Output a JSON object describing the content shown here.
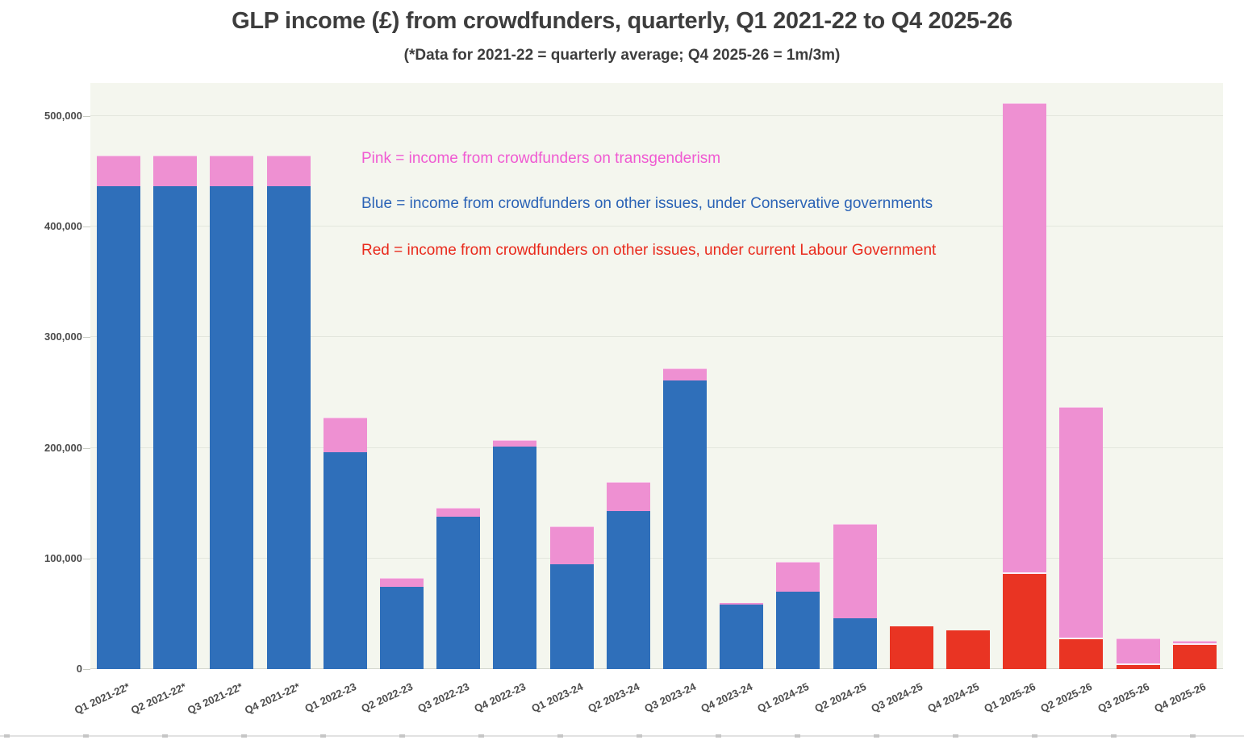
{
  "header": {
    "title": "GLP income (£) from crowdfunders, quarterly, Q1 2021-22 to Q4 2025-26",
    "subtitle": "(*Data for 2021-22 = quarterly average; Q4 2025-26 = 1m/3m)"
  },
  "legend": {
    "items": [
      {
        "label": "Pink = income from crowdfunders on transgenderism",
        "color": "#f05ad2"
      },
      {
        "label": "Blue = income from crowdfunders on other issues, under Conservative governments",
        "color": "#2b63b6"
      },
      {
        "label": "Red = income from crowdfunders on other issues, under current Labour Government",
        "color": "#e92a1c"
      }
    ]
  },
  "colors": {
    "pink_bar": "#ee90d2",
    "blue_bar": "#2f6fba",
    "red_bar": "#e93423",
    "plot_background": "#f4f6ee",
    "gridline": "#e3e6dd",
    "axis_text": "#4c4c4c",
    "title_text": "#3d3d3d"
  },
  "chart_data": {
    "type": "bar",
    "stacked": true,
    "title": "GLP income (£) from crowdfunders, quarterly, Q1 2021-22 to Q4 2025-26",
    "subtitle": "(*Data for 2021-22 = quarterly average; Q4 2025-26 = 1m/3m)",
    "xlabel": "",
    "ylabel": "",
    "grid": true,
    "ylim": [
      0,
      530000
    ],
    "yticks": [
      0,
      100000,
      200000,
      300000,
      400000,
      500000
    ],
    "ytick_labels": [
      "0",
      "100,000",
      "200,000",
      "300,000",
      "400,000",
      "500,000"
    ],
    "legend_position": "inside-top-left-text",
    "categories": [
      "Q1 2021-22*",
      "Q2 2021-22*",
      "Q3 2021-22*",
      "Q4 2021-22*",
      "Q1 2022-23",
      "Q2 2022-23",
      "Q3 2022-23",
      "Q4 2022-23",
      "Q1 2023-24",
      "Q2 2023-24",
      "Q3 2023-24",
      "Q4 2023-24",
      "Q1 2024-25",
      "Q2 2024-25",
      "Q3 2024-25",
      "Q4 2024-25",
      "Q1 2025-26",
      "Q2 2025-26",
      "Q3 2025-26",
      "Q4 2025-26"
    ],
    "series": [
      {
        "name": "Pink = income from crowdfunders on transgenderism",
        "color": "#ee90d2",
        "values": [
          28000,
          28000,
          28000,
          28000,
          31000,
          8000,
          8000,
          6000,
          34000,
          26000,
          11000,
          1500,
          27000,
          85000,
          0,
          0,
          426000,
          210000,
          24000,
          4000
        ]
      },
      {
        "name": "Blue = income from crowdfunders on other issues, under Conservative governments",
        "color": "#2f6fba",
        "values": [
          437000,
          437000,
          437000,
          437000,
          196000,
          74000,
          138000,
          201000,
          95000,
          143000,
          261000,
          58000,
          70000,
          46000,
          0,
          0,
          0,
          0,
          0,
          0
        ]
      },
      {
        "name": "Red = income from crowdfunders on other issues, under current Labour Government",
        "color": "#e93423",
        "values": [
          0,
          0,
          0,
          0,
          0,
          0,
          0,
          0,
          0,
          0,
          0,
          0,
          0,
          0,
          39000,
          35000,
          86000,
          27000,
          4000,
          22000
        ]
      }
    ]
  }
}
